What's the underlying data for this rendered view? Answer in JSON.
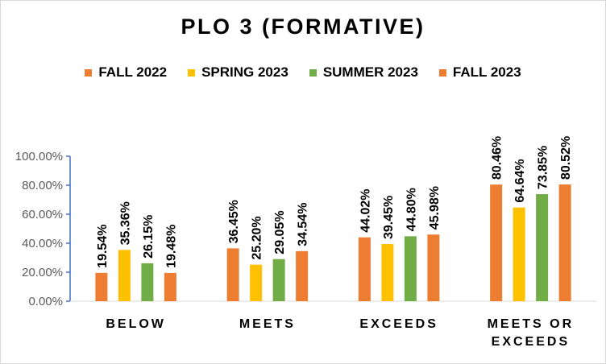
{
  "chart_data": {
    "type": "bar",
    "title": "PLO 3 (FORMATIVE)",
    "categories": [
      [
        "BELOW"
      ],
      [
        "MEETS"
      ],
      [
        "EXCEEDS"
      ],
      [
        "MEETS OR",
        "EXCEEDS"
      ]
    ],
    "series": [
      {
        "name": "FALL 2022",
        "color": "#ED7D31",
        "values": [
          19.54,
          36.45,
          44.02,
          80.46
        ],
        "labels": [
          "19.54%",
          "36.45%",
          "44.02%",
          "80.46%"
        ]
      },
      {
        "name": "SPRING 2023",
        "color": "#FFC000",
        "values": [
          35.36,
          25.2,
          39.45,
          64.64
        ],
        "labels": [
          "35.36%",
          "25.20%",
          "39.45%",
          "64.64%"
        ]
      },
      {
        "name": "SUMMER 2023",
        "color": "#70AD47",
        "values": [
          26.15,
          29.05,
          44.8,
          73.85
        ],
        "labels": [
          "26.15%",
          "29.05%",
          "44.80%",
          "73.85%"
        ]
      },
      {
        "name": "FALL 2023",
        "color": "#ED7D31",
        "values": [
          19.48,
          34.54,
          45.98,
          80.52
        ],
        "labels": [
          "19.48%",
          "34.54%",
          "45.98%",
          "80.52%"
        ]
      }
    ],
    "yticks": [
      "0.00%",
      "20.00%",
      "40.00%",
      "60.00%",
      "80.00%",
      "100.00%"
    ],
    "ylim": [
      0,
      100
    ],
    "grid": false,
    "legend_position": "top"
  }
}
